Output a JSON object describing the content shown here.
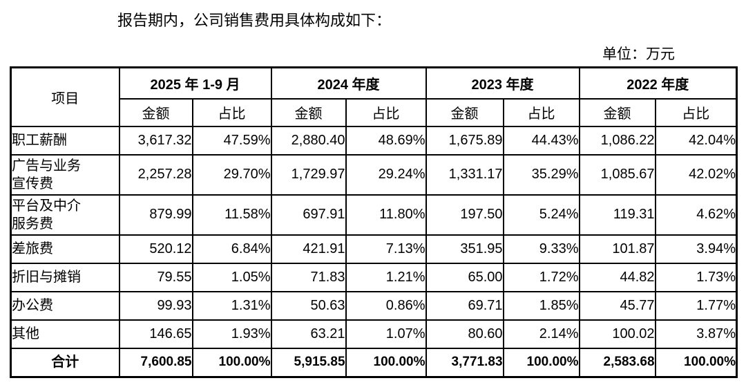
{
  "colors": {
    "background": "#ffffff",
    "text": "#000000",
    "table_border": "#000000"
  },
  "intro": "报告期内，公司销售费用具体构成如下：",
  "unit_label": "单位：万元",
  "table": {
    "item_header": "项目",
    "period_headers": [
      "2025 年 1-9 月",
      "2024 年度",
      "2023 年度",
      "2022 年度"
    ],
    "sub_headers": {
      "amount": "金额",
      "ratio": "占比"
    },
    "rows": [
      {
        "item": "职工薪酬",
        "two_line": false,
        "values": [
          "3,617.32",
          "47.59%",
          "2,880.40",
          "48.69%",
          "1,675.89",
          "44.43%",
          "1,086.22",
          "42.04%"
        ]
      },
      {
        "item": "广告与业务\n宣传费",
        "two_line": true,
        "values": [
          "2,257.28",
          "29.70%",
          "1,729.97",
          "29.24%",
          "1,331.17",
          "35.29%",
          "1,085.67",
          "42.02%"
        ]
      },
      {
        "item": "平台及中介\n服务费",
        "two_line": true,
        "values": [
          "879.99",
          "11.58%",
          "697.91",
          "11.80%",
          "197.50",
          "5.24%",
          "119.31",
          "4.62%"
        ]
      },
      {
        "item": "差旅费",
        "two_line": false,
        "values": [
          "520.12",
          "6.84%",
          "421.91",
          "7.13%",
          "351.95",
          "9.33%",
          "101.87",
          "3.94%"
        ]
      },
      {
        "item": "折旧与摊销",
        "two_line": false,
        "values": [
          "79.55",
          "1.05%",
          "71.83",
          "1.21%",
          "65.00",
          "1.72%",
          "44.82",
          "1.73%"
        ]
      },
      {
        "item": "办公费",
        "two_line": false,
        "values": [
          "99.93",
          "1.31%",
          "50.63",
          "0.86%",
          "69.71",
          "1.85%",
          "45.77",
          "1.77%"
        ]
      },
      {
        "item": "其他",
        "two_line": false,
        "values": [
          "146.65",
          "1.93%",
          "63.21",
          "1.07%",
          "80.60",
          "2.14%",
          "100.02",
          "3.87%"
        ]
      }
    ],
    "total_row": {
      "item": "合计",
      "values": [
        "7,600.85",
        "100.00%",
        "5,915.85",
        "100.00%",
        "3,771.83",
        "100.00%",
        "2,583.68",
        "100.00%"
      ]
    }
  }
}
